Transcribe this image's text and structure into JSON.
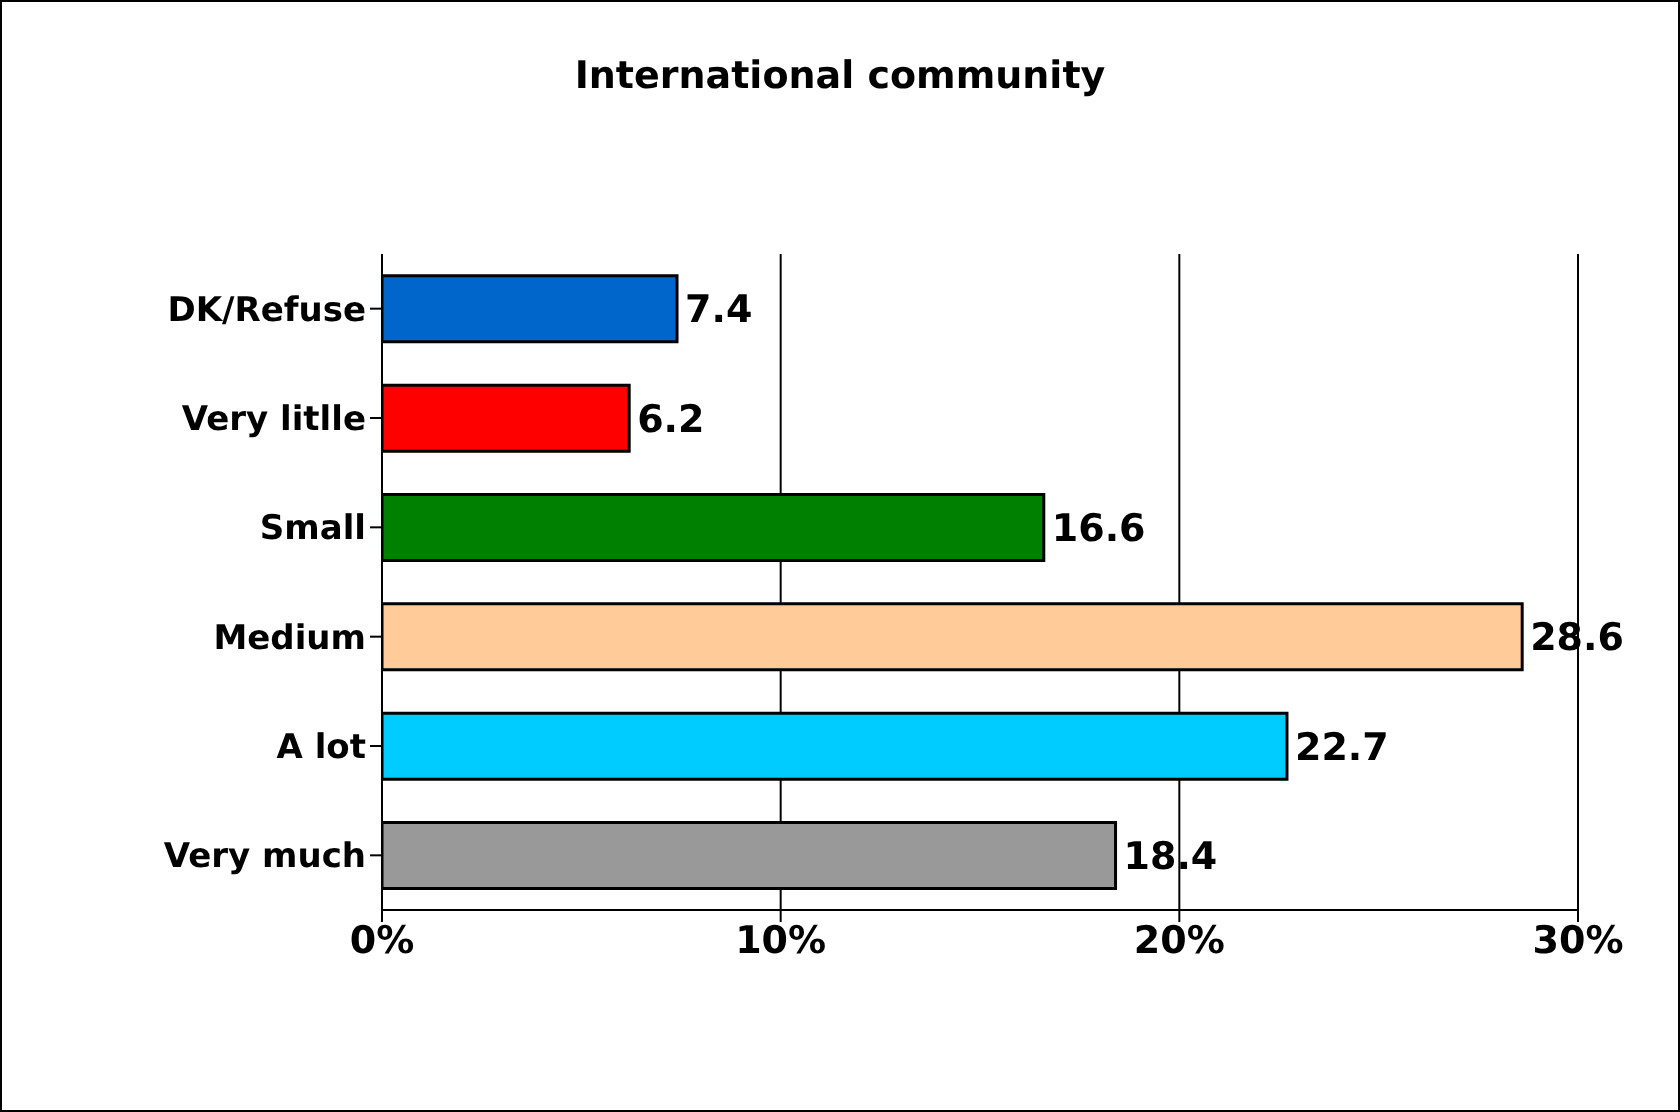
{
  "chart_data": {
    "type": "bar",
    "orientation": "horizontal",
    "title": "International community",
    "categories": [
      "DK/Refuse",
      "Very litlle",
      "Small",
      "Medium",
      "A lot",
      "Very much"
    ],
    "values": [
      7.4,
      6.2,
      16.6,
      28.6,
      22.7,
      18.4
    ],
    "colors": [
      "#0066cc",
      "#ff0000",
      "#008000",
      "#ffcc99",
      "#00ccff",
      "#999999"
    ],
    "xlim": [
      0,
      30
    ],
    "xticks": [
      {
        "value": 0,
        "label": "0%"
      },
      {
        "value": 10,
        "label": "10%"
      },
      {
        "value": 20,
        "label": "20%"
      },
      {
        "value": 30,
        "label": "30%"
      }
    ],
    "grid": "x",
    "data_labels": true
  }
}
